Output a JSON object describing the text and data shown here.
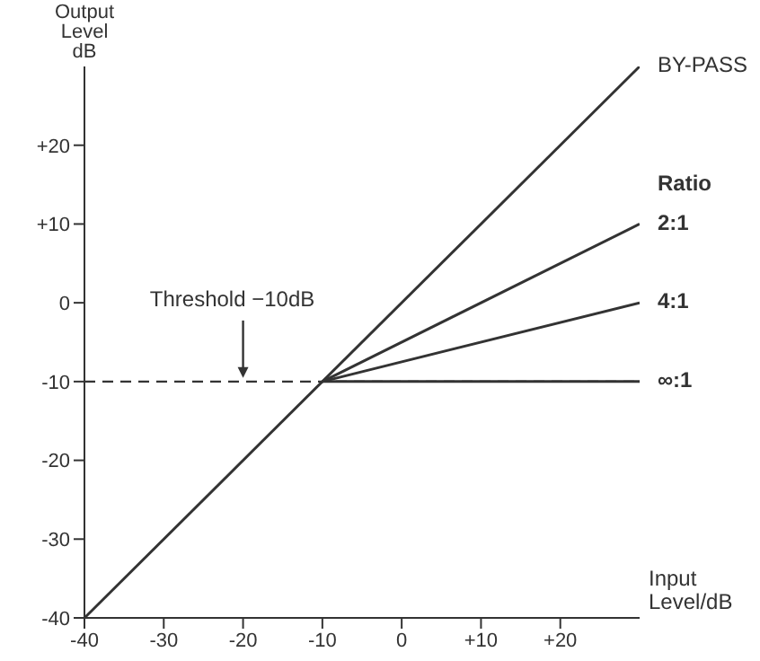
{
  "chart_data": {
    "type": "line",
    "xlabel": "Input Level/dB",
    "ylabel": "Output Level dB",
    "legend_title": "Ratio",
    "xlim": [
      -40,
      30
    ],
    "ylim": [
      -40,
      30
    ],
    "xticks": [
      -40,
      -30,
      -20,
      -10,
      0,
      {
        "value": 10,
        "label": "+10"
      },
      {
        "value": 20,
        "label": "+20"
      }
    ],
    "yticks": [
      -40,
      -30,
      -20,
      -10,
      0,
      {
        "value": 10,
        "label": "+10"
      },
      {
        "value": 20,
        "label": "+20"
      }
    ],
    "series": [
      {
        "name": "BY-PASS",
        "color": "#333333",
        "x": [
          -40,
          30
        ],
        "values": [
          -40,
          30
        ]
      },
      {
        "name": "2:1",
        "color": "#333333",
        "x": [
          -10,
          30
        ],
        "values": [
          -10,
          10
        ]
      },
      {
        "name": "4:1",
        "color": "#333333",
        "x": [
          -10,
          30
        ],
        "values": [
          -10,
          0
        ]
      },
      {
        "name": "∞:1",
        "color": "#333333",
        "x": [
          -10,
          30
        ],
        "values": [
          -10,
          -10
        ]
      }
    ],
    "ref_lines": [
      {
        "axis": "y",
        "value": -10,
        "line_style": "dashed",
        "color": "#333333"
      }
    ],
    "annotations": [
      {
        "text": "Threshold −10dB",
        "x": -20,
        "y": -10
      }
    ],
    "marker": "none",
    "line_style": "solid"
  }
}
